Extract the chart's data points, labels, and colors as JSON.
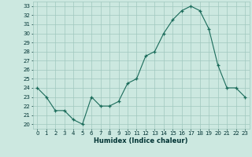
{
  "x": [
    0,
    1,
    2,
    3,
    4,
    5,
    6,
    7,
    8,
    9,
    10,
    11,
    12,
    13,
    14,
    15,
    16,
    17,
    18,
    19,
    20,
    21,
    22,
    23
  ],
  "y": [
    24,
    23,
    21.5,
    21.5,
    20.5,
    20,
    23,
    22,
    22,
    22.5,
    24.5,
    25,
    27.5,
    28,
    30,
    31.5,
    32.5,
    33,
    32.5,
    30.5,
    26.5,
    24,
    24,
    23
  ],
  "xlabel": "Humidex (Indice chaleur)",
  "xlim": [
    -0.5,
    23.5
  ],
  "ylim": [
    19.5,
    33.5
  ],
  "yticks": [
    20,
    21,
    22,
    23,
    24,
    25,
    26,
    27,
    28,
    29,
    30,
    31,
    32,
    33
  ],
  "xticks": [
    0,
    1,
    2,
    3,
    4,
    5,
    6,
    7,
    8,
    9,
    10,
    11,
    12,
    13,
    14,
    15,
    16,
    17,
    18,
    19,
    20,
    21,
    22,
    23
  ],
  "line_color": "#1a6b5a",
  "marker": "+",
  "bg_color": "#cce8e0",
  "grid_color": "#a0c8be",
  "label_color": "#003333",
  "tick_color": "#003333"
}
